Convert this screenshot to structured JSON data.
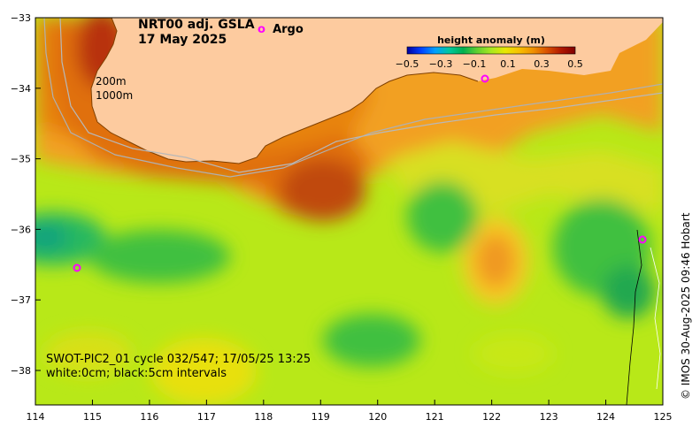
{
  "title": {
    "line1": "NRT00 adj. GSLA",
    "line2": "17 May 2025"
  },
  "legend": {
    "argo_symbol": "o",
    "argo_label": "Argo",
    "argo_color": "#ff00ff"
  },
  "colorbar": {
    "label": "height anomaly (m)",
    "ticks": [
      "−0.5",
      "−0.3",
      "−0.1",
      "0.1",
      "0.3",
      "0.5"
    ],
    "colors": [
      "#0000a0",
      "#0040ff",
      "#00a0ff",
      "#00c8a0",
      "#00b050",
      "#60d030",
      "#a8e820",
      "#e8e800",
      "#f8c000",
      "#f09000",
      "#d85000",
      "#b01800",
      "#800000"
    ]
  },
  "contour_labels": {
    "shallow": "200m",
    "deep": "1000m"
  },
  "overlay": {
    "line1": "SWOT-PIC2_01 cycle 032/547; 17/05/25 13:25",
    "line2": "white:0cm; black:5cm intervals"
  },
  "credit": "© IMOS 30-Aug-2025 09:46 Hobart",
  "axes": {
    "x_ticks": [
      "114",
      "115",
      "116",
      "117",
      "118",
      "119",
      "120",
      "121",
      "122",
      "123",
      "124",
      "125"
    ],
    "y_ticks": [
      "−33",
      "−34",
      "−35",
      "−36",
      "−37",
      "−38"
    ]
  },
  "colors": {
    "land": "#fdcb9f",
    "ocean_base": "#b8e818"
  }
}
